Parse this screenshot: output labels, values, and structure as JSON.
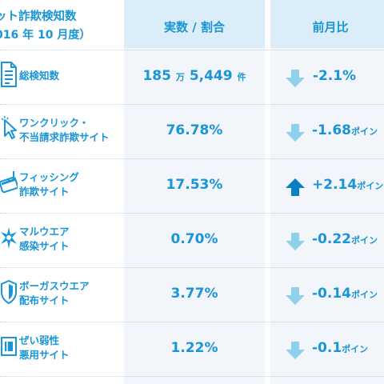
{
  "header": {
    "title": "ット詐欺検知数",
    "subtitle": "016 年 10 月度）",
    "col_value": "実数 / 割合",
    "col_change": "前月比"
  },
  "colors": {
    "accent": "#1a95d6",
    "arrow_down": "#8fd0ea",
    "arrow_up": "#0a7fc4",
    "column_bg": "#f2f5f9",
    "header_bg": "#dbedf9"
  },
  "rows": [
    {
      "icon": "document-list-icon",
      "label_lines": [
        "総検知数"
      ],
      "value_main": "185",
      "value_unit1": "万",
      "value_main2": "5,449",
      "value_unit2": "件",
      "direction": "down",
      "change": "-2.1%",
      "change_unit": ""
    },
    {
      "icon": "click-cursor-icon",
      "label_lines": [
        "ワンクリック・",
        "不当請求詐欺サイト"
      ],
      "value": "76.78%",
      "direction": "down",
      "change": "-1.68",
      "change_unit": "ポイン"
    },
    {
      "icon": "fishing-hook-card-icon",
      "label_lines": [
        "フィッシング",
        "詐欺サイト"
      ],
      "value": "17.53%",
      "direction": "up",
      "change": "+2.14",
      "change_unit": "ポイン"
    },
    {
      "icon": "malware-star-icon",
      "label_lines": [
        "マルウエア",
        "感染サイト"
      ],
      "value": "0.70%",
      "direction": "down",
      "change": "-0.22",
      "change_unit": "ポイン"
    },
    {
      "icon": "shield-icon",
      "label_lines": [
        "ボーガスウエア",
        "配布サイト"
      ],
      "value": "3.77%",
      "direction": "down",
      "change": "-0.14",
      "change_unit": "ポイン"
    },
    {
      "icon": "vulnerable-window-icon",
      "label_lines": [
        "ぜい弱性",
        "悪用サイト"
      ],
      "value": "1.22%",
      "direction": "down",
      "change": "-0.1",
      "change_unit": "ポイン"
    }
  ]
}
